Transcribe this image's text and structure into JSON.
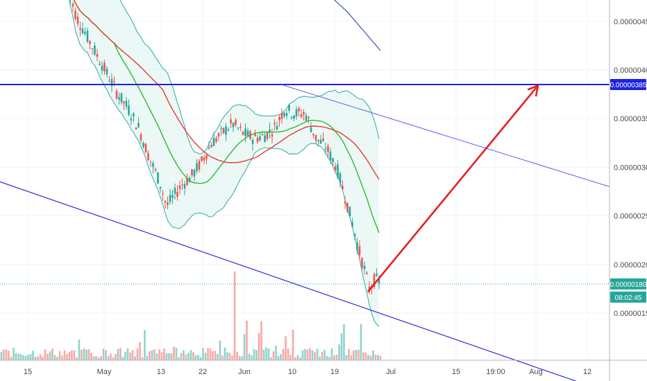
{
  "chart_data": {
    "type": "candlestick",
    "y_axis": {
      "position": "right",
      "ticks": [
        "0.00000450",
        "0.00000400",
        "0.00000350",
        "0.00000300",
        "0.00000250",
        "0.00000200",
        "0.00000150"
      ],
      "tick_values": [
        4.5e-06,
        4e-06,
        3.5e-06,
        3e-06,
        2.5e-06,
        2e-06,
        1.5e-06
      ],
      "ylim": [
        1e-06,
        4.85e-06
      ]
    },
    "x_axis": {
      "ticks": [
        "15",
        "May",
        "13",
        "22",
        "Jun",
        "10",
        "19",
        "Jul",
        "15",
        "19:00",
        "Aug",
        "12"
      ]
    },
    "price_labels": [
      {
        "text": "0.00000385",
        "value": 3.85e-06,
        "color": "#1e22e0"
      },
      {
        "text": "0.00000180",
        "value": 1.8e-06,
        "color": "#26a69a"
      },
      {
        "text": "08:02:45",
        "color": "#26a69a"
      }
    ],
    "horizontal_line": {
      "value": 3.85e-06,
      "color": "#1e22e0"
    },
    "current_price_line": {
      "value": 1.8e-06,
      "color": "#26a69a",
      "style": "dotted"
    },
    "channel_lower": {
      "from": [
        0,
        2.85e-06
      ],
      "to": [
        830,
        8e-07
      ],
      "color": "#2a2ad6"
    },
    "channel_upper": {
      "from": [
        405,
        3.85e-06
      ],
      "to": [
        878,
        2.8e-06
      ],
      "color": "#5a5ee8"
    },
    "projection_arrow": {
      "from": [
        530,
        1.72e-06
      ],
      "to": [
        775,
        3.84e-06
      ],
      "color": "#e61e1e"
    },
    "colors": {
      "up": "#26a69a",
      "down": "#ef5350",
      "bb_band": "#4db6ac",
      "ma_fast": "#2eb82e",
      "ma_slow": "#e53935",
      "ma_long": "#3f51b5",
      "bb_fill": "#e6f5f2"
    },
    "ma_long_points": [
      [
        462,
        4.85e-06
      ],
      [
        500,
        4.6e-06
      ],
      [
        548,
        4.2e-06
      ]
    ]
  }
}
